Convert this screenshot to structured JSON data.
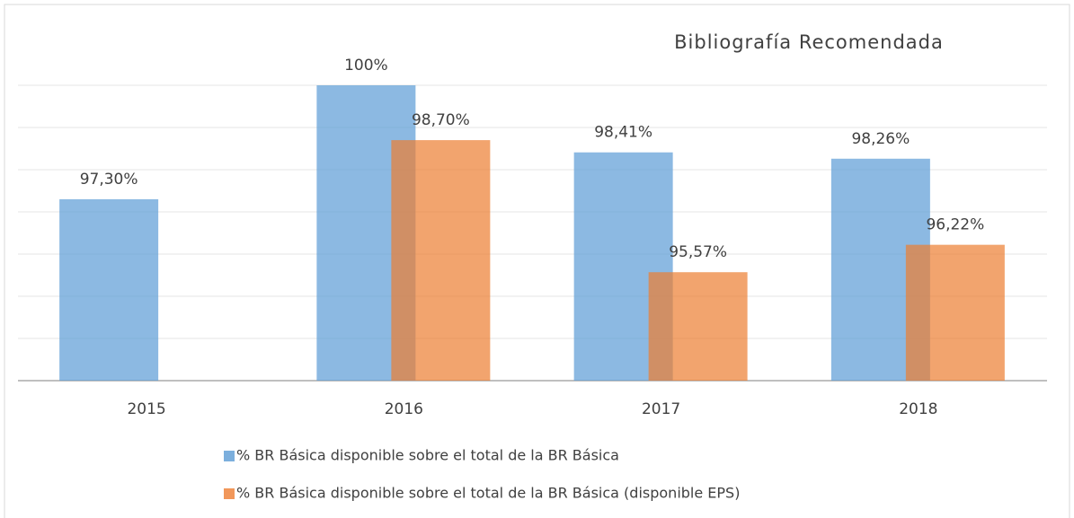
{
  "chart_data": {
    "type": "bar",
    "title": "Bibliografía Recomendada",
    "categories": [
      "2015",
      "2016",
      "2017",
      "2018"
    ],
    "series": [
      {
        "name": "% BR Básica disponible sobre el total de la BR Básica",
        "color": "#5b9bd5",
        "values": [
          97.3,
          100,
          98.41,
          98.26
        ],
        "value_labels": [
          "97,30%",
          "100%",
          "98,41%",
          "98,26%"
        ]
      },
      {
        "name": "% BR Básica disponible sobre el total de la BR Básica (disponible EPS)",
        "color": "#ed7d31",
        "values": [
          null,
          98.7,
          95.57,
          96.22
        ],
        "value_labels": [
          null,
          "98,70%",
          "95,57%",
          "96,22%"
        ]
      }
    ],
    "ylim": [
      93,
      101
    ],
    "yticks": [
      93,
      94,
      95,
      96,
      97,
      98,
      99,
      100
    ],
    "grid": true
  }
}
